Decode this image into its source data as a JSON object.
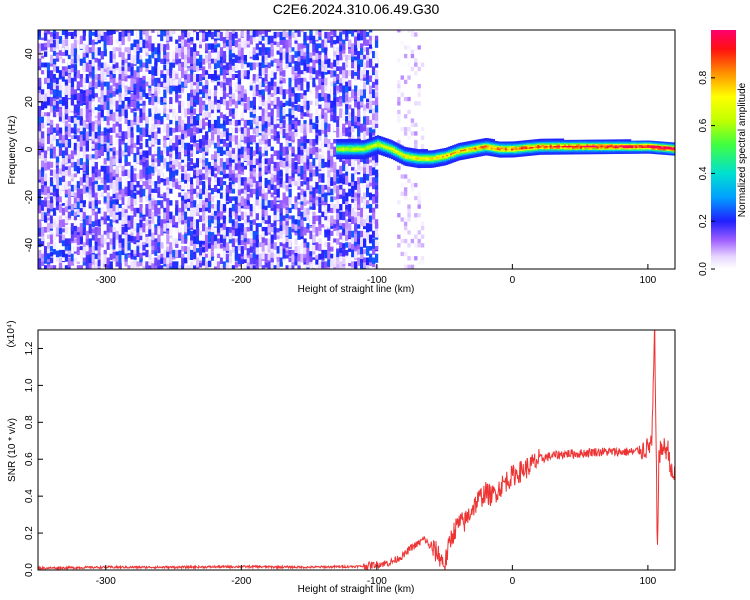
{
  "figure_title": "C2E6.2024.310.06.49.G30",
  "chart_data": [
    {
      "type": "heatmap",
      "title": "",
      "xlabel": "Height of straight line (km)",
      "ylabel": "Frequency (Hz)",
      "xlim": [
        -350,
        120
      ],
      "ylim": [
        -50,
        50
      ],
      "x_ticks": [
        -300,
        -200,
        -100,
        0,
        100
      ],
      "y_ticks": [
        -40,
        -20,
        0,
        20,
        40
      ],
      "colorbar": {
        "label": "Normalized spectral amplitude",
        "range": [
          0.0,
          1.0
        ],
        "ticks": [
          "0.0",
          "0.2",
          "0.4",
          "0.6",
          "0.8"
        ],
        "colormap": "rainbow"
      },
      "regions": [
        {
          "x_range": [
            -350,
            -100
          ],
          "description_level": "noise",
          "amplitude_range": [
            0.0,
            0.25
          ]
        },
        {
          "x_range": [
            -85,
            -65
          ],
          "description_level": "noise",
          "amplitude_range": [
            0.0,
            0.1
          ]
        },
        {
          "x_range": [
            -130,
            120
          ],
          "center_frequency_hz": [
            0,
            2
          ],
          "amplitude_range": [
            0.2,
            1.0
          ]
        }
      ],
      "ridge": {
        "x": [
          -130,
          -110,
          -100,
          -90,
          -80,
          -70,
          -60,
          -50,
          -40,
          -30,
          -20,
          -10,
          0,
          20,
          40,
          60,
          80,
          100,
          120
        ],
        "y": [
          0,
          0,
          2,
          0,
          -3,
          -4,
          -4,
          -3,
          -1,
          0,
          1,
          0,
          0,
          1,
          1,
          1,
          1,
          1,
          0
        ]
      }
    },
    {
      "type": "line",
      "title": "",
      "xlabel": "Height of straight line (km)",
      "ylabel": "SNR (10 * v/v)",
      "y_multiplier": "(x10⁴)",
      "xlim": [
        -350,
        120
      ],
      "ylim": [
        0.0,
        1.3
      ],
      "x_ticks": [
        -300,
        -200,
        -100,
        0,
        100
      ],
      "y_ticks": [
        "0.0",
        "0.2",
        "0.4",
        "0.6",
        "0.8",
        "1.0",
        "1.2"
      ],
      "series": [
        {
          "color": "#ee3333",
          "x": [
            -350,
            -300,
            -250,
            -200,
            -150,
            -110,
            -100,
            -90,
            -80,
            -75,
            -70,
            -65,
            -60,
            -55,
            -50,
            -45,
            -40,
            -35,
            -30,
            -25,
            -20,
            -15,
            -10,
            -5,
            0,
            10,
            20,
            30,
            40,
            50,
            60,
            70,
            80,
            90,
            95,
            100,
            103,
            105,
            107,
            108,
            110,
            112,
            115,
            118,
            120
          ],
          "values": [
            0.01,
            0.015,
            0.015,
            0.018,
            0.015,
            0.02,
            0.03,
            0.04,
            0.08,
            0.12,
            0.14,
            0.17,
            0.12,
            0.09,
            0.03,
            0.18,
            0.25,
            0.26,
            0.33,
            0.38,
            0.42,
            0.4,
            0.44,
            0.48,
            0.51,
            0.55,
            0.6,
            0.62,
            0.63,
            0.63,
            0.64,
            0.64,
            0.64,
            0.64,
            0.65,
            0.66,
            0.7,
            1.3,
            0.08,
            0.6,
            0.66,
            0.66,
            0.65,
            0.5,
            0.52
          ]
        }
      ]
    }
  ]
}
